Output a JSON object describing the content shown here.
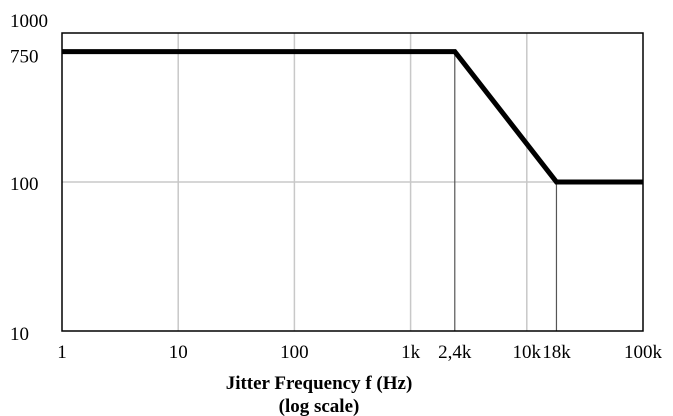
{
  "chart_data": {
    "type": "line",
    "title": "",
    "xlabel": "Jitter Frequency f (Hz)",
    "xlabel_note": "(log scale)",
    "ylabel": "",
    "x_scale": "log",
    "y_scale": "log",
    "xlim": [
      1,
      100000
    ],
    "ylim": [
      10,
      1000
    ],
    "grid": true,
    "x_ticks": [
      {
        "value": 1,
        "label": "1"
      },
      {
        "value": 10,
        "label": "10"
      },
      {
        "value": 100,
        "label": "100"
      },
      {
        "value": 1000,
        "label": "1k"
      },
      {
        "value": 2400,
        "label": "2,4k"
      },
      {
        "value": 10000,
        "label": "10k"
      },
      {
        "value": 18000,
        "label": "18k"
      },
      {
        "value": 100000,
        "label": "100k"
      }
    ],
    "y_ticks": [
      {
        "value": 10,
        "label": "10"
      },
      {
        "value": 100,
        "label": "100"
      },
      {
        "value": 750,
        "label": "750"
      },
      {
        "value": 1000,
        "label": "1000"
      }
    ],
    "series": [
      {
        "color": "#000000",
        "points": [
          {
            "x": 1,
            "y": 750
          },
          {
            "x": 2400,
            "y": 750
          },
          {
            "x": 18000,
            "y": 100
          },
          {
            "x": 100000,
            "y": 100
          }
        ]
      }
    ]
  }
}
